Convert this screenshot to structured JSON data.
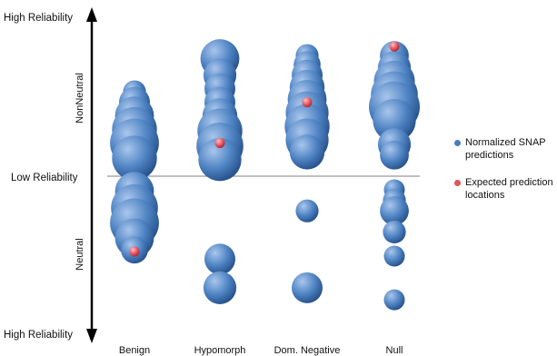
{
  "chart_data": {
    "type": "scatter",
    "y_axis_labels": {
      "top": "High Reliability",
      "middle": "Low Reliability",
      "bottom": "High Reliability",
      "upper_region": "NonNeutral",
      "lower_region": "Neutral"
    },
    "categories": [
      "Benign",
      "Hypomorph",
      "Dom. Negative",
      "Null"
    ],
    "ylim": [
      -1,
      1
    ],
    "grid": false,
    "reference_line": 0,
    "legend_placement": "right",
    "series": [
      {
        "name": "Normalized SNAP predictions",
        "color": "#4a7ec0",
        "points": [
          {
            "category": "Benign",
            "y": 0.56,
            "size": 0.3
          },
          {
            "category": "Benign",
            "y": 0.49,
            "size": 0.5
          },
          {
            "category": "Benign",
            "y": 0.4,
            "size": 0.7
          },
          {
            "category": "Benign",
            "y": 0.31,
            "size": 0.85
          },
          {
            "category": "Benign",
            "y": 0.22,
            "size": 0.95
          },
          {
            "category": "Benign",
            "y": 0.12,
            "size": 0.85
          },
          {
            "category": "Benign",
            "y": -0.1,
            "size": 0.7
          },
          {
            "category": "Benign",
            "y": -0.21,
            "size": 0.9
          },
          {
            "category": "Benign",
            "y": -0.31,
            "size": 0.95
          },
          {
            "category": "Benign",
            "y": -0.41,
            "size": 0.7
          },
          {
            "category": "Benign",
            "y": -0.49,
            "size": 0.4
          },
          {
            "category": "Hypomorph",
            "y": 0.78,
            "size": 0.7
          },
          {
            "category": "Hypomorph",
            "y": 0.67,
            "size": 0.55
          },
          {
            "category": "Hypomorph",
            "y": 0.58,
            "size": 0.5
          },
          {
            "category": "Hypomorph",
            "y": 0.49,
            "size": 0.5
          },
          {
            "category": "Hypomorph",
            "y": 0.4,
            "size": 0.6
          },
          {
            "category": "Hypomorph",
            "y": 0.3,
            "size": 0.85
          },
          {
            "category": "Hypomorph",
            "y": 0.2,
            "size": 0.9
          },
          {
            "category": "Hypomorph",
            "y": 0.11,
            "size": 0.8
          },
          {
            "category": "Hypomorph",
            "y": -0.55,
            "size": 0.5
          },
          {
            "category": "Hypomorph",
            "y": -0.74,
            "size": 0.55
          },
          {
            "category": "Dom. Negative",
            "y": 0.8,
            "size": 0.3
          },
          {
            "category": "Dom. Negative",
            "y": 0.74,
            "size": 0.4
          },
          {
            "category": "Dom. Negative",
            "y": 0.67,
            "size": 0.5
          },
          {
            "category": "Dom. Negative",
            "y": 0.59,
            "size": 0.6
          },
          {
            "category": "Dom. Negative",
            "y": 0.51,
            "size": 0.7
          },
          {
            "category": "Dom. Negative",
            "y": 0.42,
            "size": 0.8
          },
          {
            "category": "Dom. Negative",
            "y": 0.33,
            "size": 0.85
          },
          {
            "category": "Dom. Negative",
            "y": 0.24,
            "size": 0.8
          },
          {
            "category": "Dom. Negative",
            "y": 0.16,
            "size": 0.6
          },
          {
            "category": "Dom. Negative",
            "y": -0.23,
            "size": 0.3
          },
          {
            "category": "Dom. Negative",
            "y": -0.74,
            "size": 0.5
          },
          {
            "category": "Null",
            "y": 0.8,
            "size": 0.45
          },
          {
            "category": "Null",
            "y": 0.72,
            "size": 0.55
          },
          {
            "category": "Null",
            "y": 0.63,
            "size": 0.75
          },
          {
            "category": "Null",
            "y": 0.54,
            "size": 0.9
          },
          {
            "category": "Null",
            "y": 0.46,
            "size": 1.0
          },
          {
            "category": "Null",
            "y": 0.37,
            "size": 0.8
          },
          {
            "category": "Null",
            "y": 0.21,
            "size": 0.55
          },
          {
            "category": "Null",
            "y": 0.14,
            "size": 0.45
          },
          {
            "category": "Null",
            "y": -0.09,
            "size": 0.25
          },
          {
            "category": "Null",
            "y": -0.16,
            "size": 0.3
          },
          {
            "category": "Null",
            "y": -0.23,
            "size": 0.45
          },
          {
            "category": "Null",
            "y": -0.37,
            "size": 0.3
          },
          {
            "category": "Null",
            "y": -0.53,
            "size": 0.25
          },
          {
            "category": "Null",
            "y": -0.82,
            "size": 0.25
          }
        ]
      },
      {
        "name": "Expected prediction locations",
        "color": "#e0525c",
        "points": [
          {
            "category": "Benign",
            "y": -0.5
          },
          {
            "category": "Hypomorph",
            "y": 0.22
          },
          {
            "category": "Dom. Negative",
            "y": 0.49
          },
          {
            "category": "Null",
            "y": 0.86
          }
        ]
      }
    ]
  }
}
